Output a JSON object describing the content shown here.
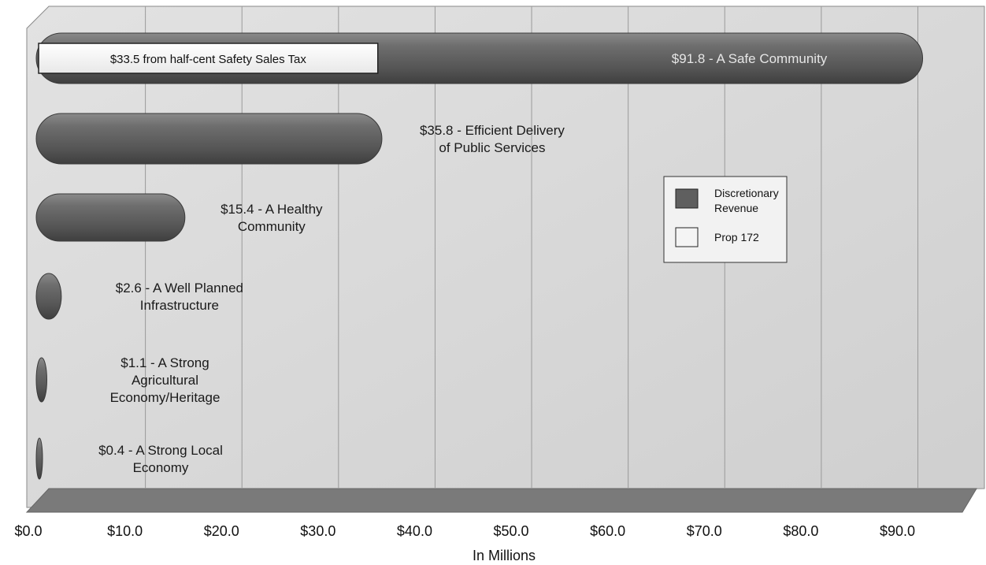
{
  "chart_data": {
    "type": "bar",
    "orientation": "horizontal",
    "title": "",
    "xlabel": "In Millions",
    "ylabel": "",
    "xlim": [
      0,
      92
    ],
    "x_tick_labels": [
      "$0.0",
      "$10.0",
      "$20.0",
      "$30.0",
      "$40.0",
      "$50.0",
      "$60.0",
      "$70.0",
      "$80.0",
      "$90.0"
    ],
    "grid": true,
    "legend_position": "right",
    "series": [
      {
        "name": "Discretionary Revenue",
        "color": "#5f5f5f"
      },
      {
        "name": "Prop 172",
        "color": "#f4f4f4"
      }
    ],
    "bars": [
      {
        "value": 91.8,
        "label_lines": [
          "$91.8 - A Safe Community"
        ],
        "label_inside": true,
        "overlay": {
          "series": "Prop 172",
          "value": 33.5,
          "label": "$33.5 from half-cent Safety Sales Tax"
        }
      },
      {
        "value": 35.8,
        "label_lines": [
          "$35.8 - Efficient Delivery",
          "of Public Services"
        ]
      },
      {
        "value": 15.4,
        "label_lines": [
          "$15.4 - A Healthy",
          "Community"
        ]
      },
      {
        "value": 2.6,
        "label_lines": [
          "$2.6 - A Well Planned",
          "Infrastructure"
        ]
      },
      {
        "value": 1.1,
        "label_lines": [
          "$1.1 - A Strong",
          "Agricultural",
          "Economy/Heritage"
        ]
      },
      {
        "value": 0.4,
        "label_lines": [
          "$0.4 - A Strong Local",
          "Economy"
        ]
      }
    ]
  }
}
